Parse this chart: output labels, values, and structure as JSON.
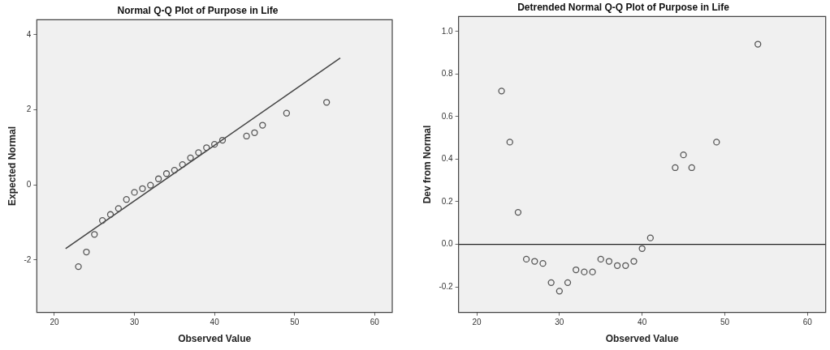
{
  "chart_data": [
    {
      "type": "scatter",
      "title": "Normal Q-Q Plot of Purpose in Life",
      "xlabel": "Observed Value",
      "ylabel": "Expected Normal",
      "xlim": [
        17.8,
        62.2
      ],
      "xticks": [
        20,
        30,
        40,
        50,
        60
      ],
      "ylim": [
        -3.4,
        4.4
      ],
      "yticks": [
        -2,
        0,
        2,
        4
      ],
      "legend": false,
      "series": [
        {
          "color": "#555555",
          "marker": "circle",
          "x": [
            23,
            24,
            25,
            26,
            27,
            28,
            29,
            30,
            31,
            32,
            33,
            34,
            35,
            36,
            37,
            38,
            39,
            40,
            41,
            44,
            45,
            46,
            49,
            54
          ],
          "values": [
            -2.18,
            -1.79,
            -1.32,
            -0.95,
            -0.79,
            -0.63,
            -0.39,
            -0.2,
            -0.1,
            -0.01,
            0.16,
            0.3,
            0.39,
            0.54,
            0.72,
            0.86,
            0.99,
            1.08,
            1.19,
            1.3,
            1.39,
            1.59,
            1.91,
            2.2
          ]
        },
        {
          "type": "line",
          "color": "#444444",
          "marker": "none",
          "x": [
            21.4,
            55.7
          ],
          "values": [
            -1.7,
            3.38
          ]
        }
      ]
    },
    {
      "type": "scatter",
      "title": "Detrended Normal Q-Q Plot of Purpose in Life",
      "xlabel": "Observed Value",
      "ylabel": "Dev from Normal",
      "xlim": [
        17.8,
        62.2
      ],
      "xticks": [
        20,
        30,
        40,
        50,
        60
      ],
      "ylim": [
        -0.32,
        1.07
      ],
      "yticks": [
        {
          "value": -0.2,
          "label": "-0.2"
        },
        {
          "value": 0,
          "label": "0.0"
        },
        {
          "value": 0.2,
          "label": "0.2"
        },
        {
          "value": 0.4,
          "label": "0.4"
        },
        {
          "value": 0.6,
          "label": "0.6"
        },
        {
          "value": 0.8,
          "label": "0.8"
        },
        {
          "value": 1,
          "label": "1.0"
        }
      ],
      "legend": false,
      "marker": "circle",
      "ref_lines": [
        {
          "axis": "y",
          "value": 0,
          "color": "#222222"
        }
      ],
      "series": [
        {
          "color": "#555555",
          "x": [
            23,
            24,
            25,
            26,
            27,
            28,
            29,
            30,
            31,
            32,
            33,
            34,
            35,
            36,
            37,
            38,
            39,
            40,
            41,
            44,
            45,
            46,
            49,
            54
          ],
          "values": [
            0.72,
            0.48,
            0.15,
            -0.07,
            -0.08,
            -0.09,
            -0.18,
            -0.22,
            -0.18,
            -0.12,
            -0.13,
            -0.13,
            -0.07,
            -0.08,
            -0.1,
            -0.1,
            -0.08,
            -0.02,
            0.03,
            0.36,
            0.42,
            0.36,
            0.48,
            0.94
          ]
        }
      ]
    }
  ]
}
